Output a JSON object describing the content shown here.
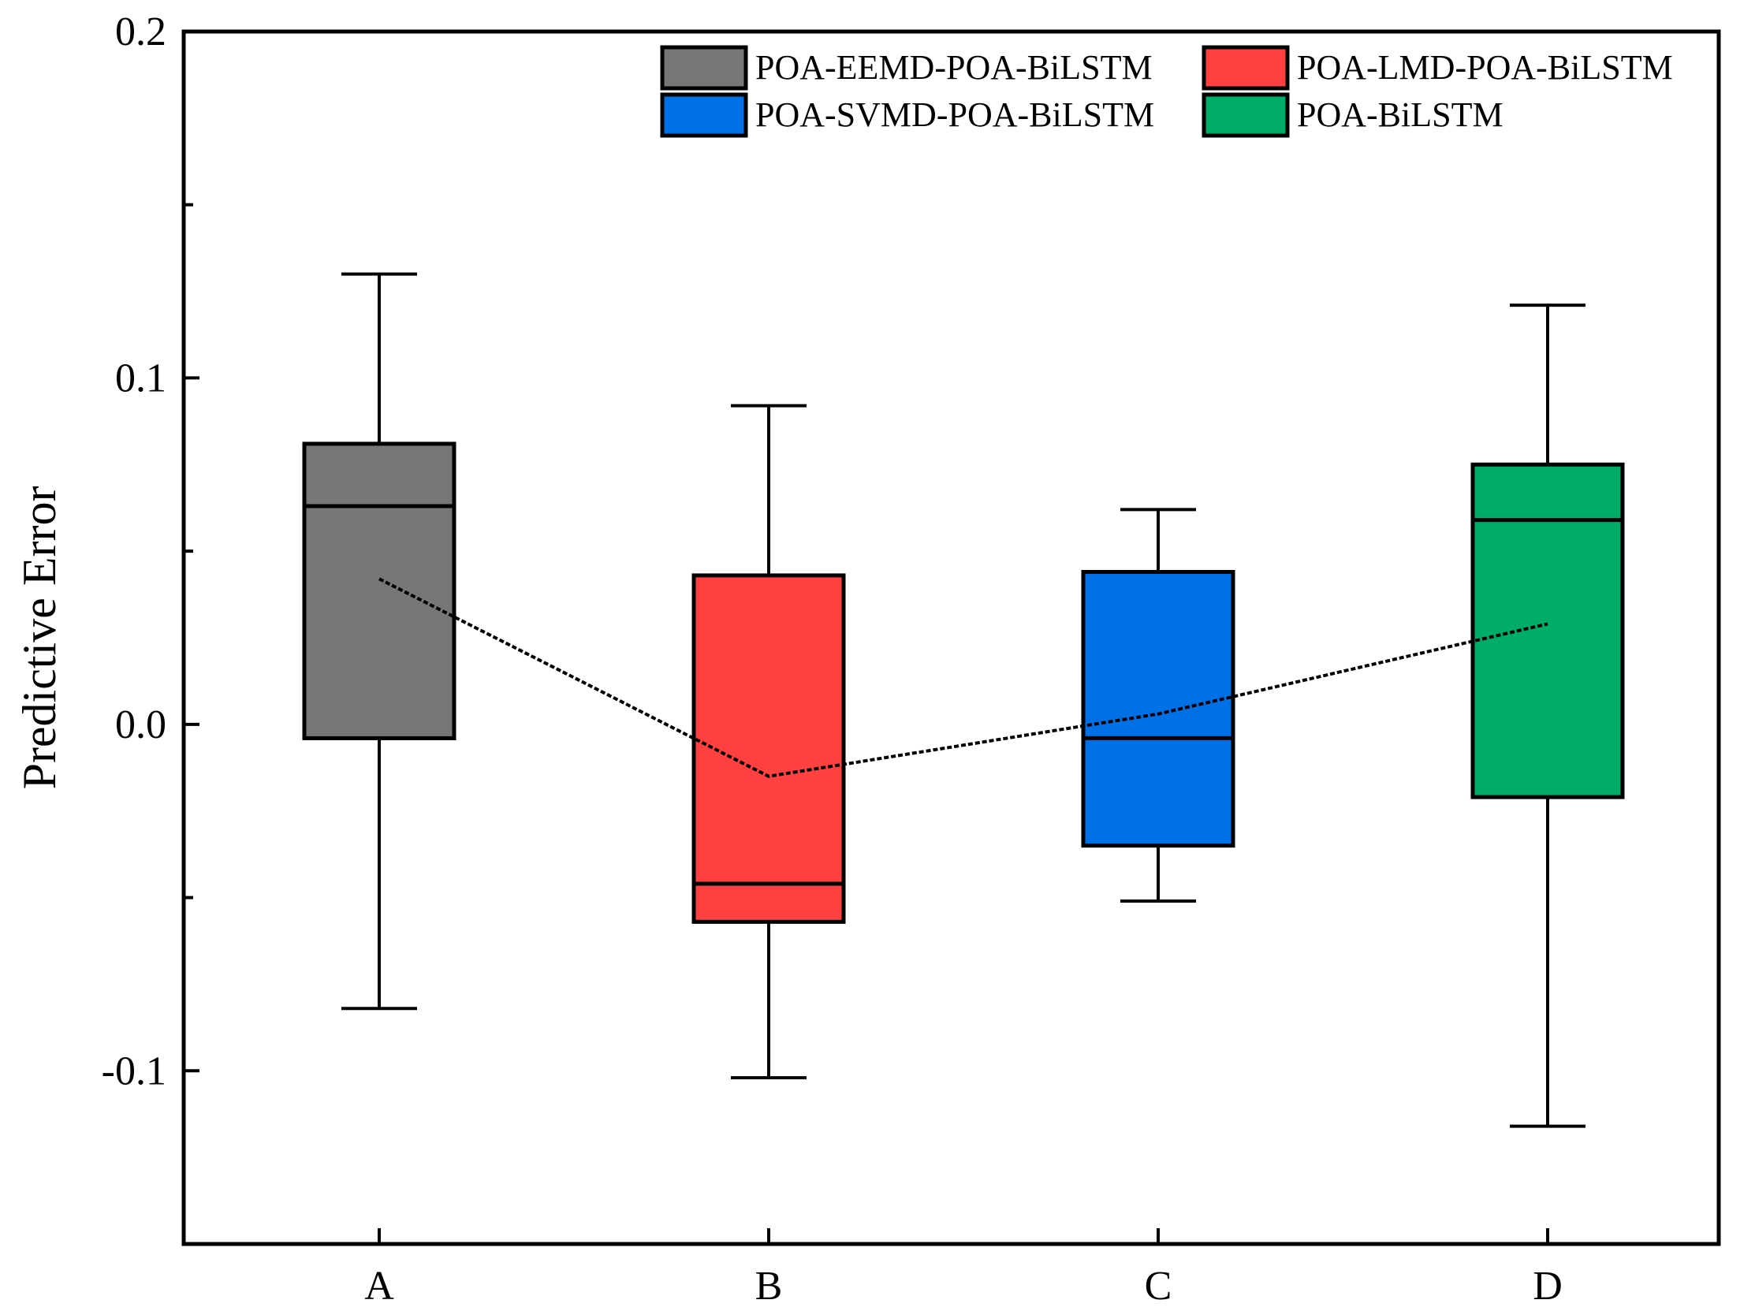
{
  "chart_data": {
    "type": "box",
    "title": "",
    "xlabel": "",
    "ylabel": "Predictive Error",
    "ylim": [
      -0.15,
      0.2
    ],
    "yticks": [
      -0.1,
      0.0,
      0.1,
      0.2
    ],
    "ytick_labels": [
      "-0.1",
      "0.0",
      "0.1",
      "0.2"
    ],
    "ytick_minor": [
      -0.05,
      0.05,
      0.15
    ],
    "categories": [
      "A",
      "B",
      "C",
      "D"
    ],
    "series": [
      {
        "name": "POA-EEMD-POA-BiLSTM",
        "category": "A",
        "color": "#777777",
        "whisker_low": -0.082,
        "q1": -0.004,
        "median": 0.063,
        "q3": 0.081,
        "whisker_high": 0.13,
        "mean": 0.042
      },
      {
        "name": "POA-LMD-POA-BiLSTM",
        "category": "B",
        "color": "#ff4040",
        "whisker_low": -0.102,
        "q1": -0.057,
        "median": -0.046,
        "q3": 0.043,
        "whisker_high": 0.092,
        "mean": -0.015
      },
      {
        "name": "POA-SVMD-POA-BiLSTM",
        "category": "C",
        "color": "#0070e6",
        "whisker_low": -0.051,
        "q1": -0.035,
        "median": -0.004,
        "q3": 0.044,
        "whisker_high": 0.062,
        "mean": 0.003
      },
      {
        "name": "POA-BiLSTM",
        "category": "D",
        "color": "#00ad68",
        "whisker_low": -0.116,
        "q1": -0.021,
        "median": 0.059,
        "q3": 0.075,
        "whisker_high": 0.121,
        "mean": 0.029
      }
    ],
    "mean_line": {
      "style": "dashed",
      "color": "#000000"
    },
    "legend": {
      "position": "top-right",
      "columns": 2
    },
    "grid": false
  }
}
